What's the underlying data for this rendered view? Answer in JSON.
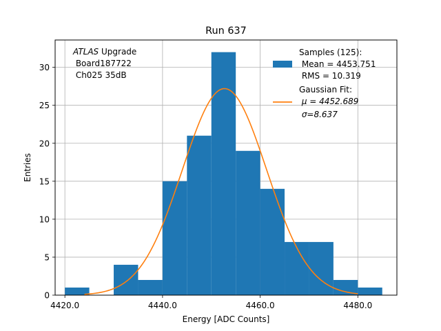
{
  "chart_data": {
    "type": "bar",
    "title": "Run 637",
    "xlabel": "Energy [ADC Counts]",
    "ylabel": "Entries",
    "xlim": [
      4418.0,
      4488.0
    ],
    "ylim": [
      0,
      33.6
    ],
    "xticks": [
      4420.0,
      4440.0,
      4460.0,
      4480.0
    ],
    "xtick_labels": [
      "4420.0",
      "4440.0",
      "4460.0",
      "4480.0"
    ],
    "yticks": [
      0,
      5,
      10,
      15,
      20,
      25,
      30
    ],
    "ytick_labels": [
      "0",
      "5",
      "10",
      "15",
      "20",
      "25",
      "30"
    ],
    "grid": true,
    "legend_position": "top-right",
    "annotation": {
      "line1_italic": "ATLAS",
      "line1_rest": " Upgrade",
      "line2": " Board187722",
      "line3": " Ch025 35dB"
    },
    "series": [
      {
        "name": "Samples (125):",
        "kind": "histogram",
        "color": "#1f77b4",
        "bins": [
          {
            "x0": 4420,
            "x1": 4425,
            "count": 1
          },
          {
            "x0": 4425,
            "x1": 4430,
            "count": 0
          },
          {
            "x0": 4430,
            "x1": 4435,
            "count": 4
          },
          {
            "x0": 4435,
            "x1": 4440,
            "count": 2
          },
          {
            "x0": 4440,
            "x1": 4445,
            "count": 15
          },
          {
            "x0": 4445,
            "x1": 4450,
            "count": 21
          },
          {
            "x0": 4450,
            "x1": 4455,
            "count": 32
          },
          {
            "x0": 4455,
            "x1": 4460,
            "count": 19
          },
          {
            "x0": 4460,
            "x1": 4465,
            "count": 14
          },
          {
            "x0": 4465,
            "x1": 4470,
            "count": 7
          },
          {
            "x0": 4470,
            "x1": 4475,
            "count": 7
          },
          {
            "x0": 4475,
            "x1": 4480,
            "count": 2
          },
          {
            "x0": 4480,
            "x1": 4485,
            "count": 1
          }
        ]
      },
      {
        "name": "Gaussian Fit:",
        "kind": "gaussian",
        "color": "#ff7f0e",
        "amplitude": 27.2,
        "mu": 4452.689,
        "sigma": 8.637,
        "x_range": [
          4424,
          4480
        ]
      }
    ],
    "legend": [
      {
        "series": 0,
        "lines": [
          "Samples (125):",
          " Mean = 4453.751",
          " RMS = 10.319"
        ]
      },
      {
        "series": 1,
        "lines": [
          "Gaussian Fit:",
          " μ = 4452.689",
          " σ=8.637"
        ]
      }
    ]
  }
}
